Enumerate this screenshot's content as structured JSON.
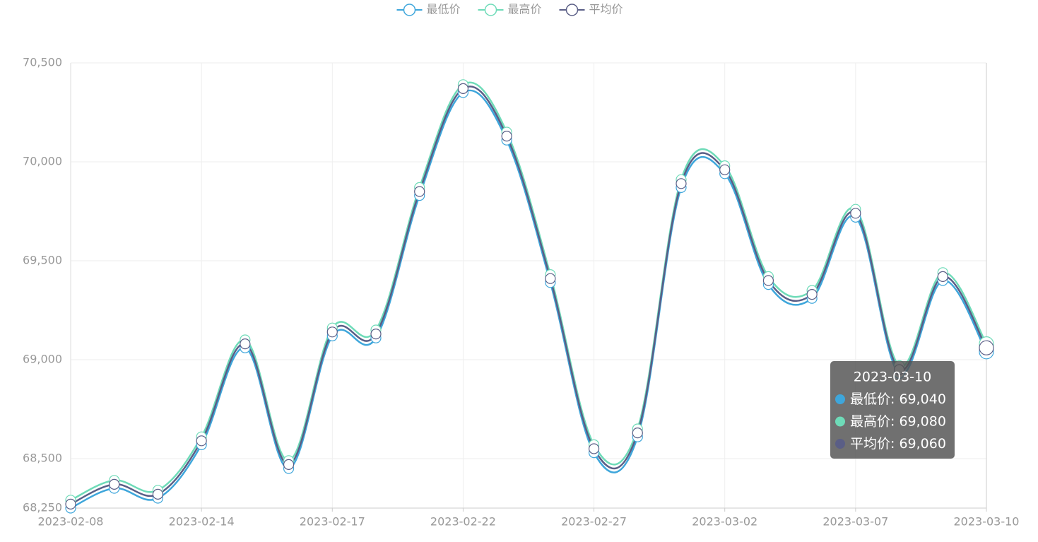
{
  "chart_data": {
    "type": "line",
    "categories": [
      "2023-02-08",
      null,
      null,
      "2023-02-14",
      null,
      null,
      "2023-02-17",
      null,
      null,
      "2023-02-22",
      null,
      null,
      "2023-02-27",
      null,
      null,
      "2023-03-02",
      null,
      null,
      "2023-03-07",
      null,
      null,
      "2023-03-10"
    ],
    "series": [
      {
        "name": "最低价",
        "color": "#3ea6db",
        "values": [
          68250,
          68350,
          68300,
          68570,
          69060,
          68450,
          69120,
          69110,
          69830,
          70350,
          70110,
          69390,
          68530,
          68610,
          69870,
          69940,
          69380,
          69310,
          69720,
          68930,
          69400,
          69040
        ]
      },
      {
        "name": "最高价",
        "color": "#6edbb8",
        "values": [
          68290,
          68390,
          68340,
          68610,
          69100,
          68490,
          69160,
          69150,
          69870,
          70390,
          70150,
          69430,
          68570,
          68650,
          69910,
          69980,
          69420,
          69350,
          69760,
          68970,
          69440,
          69080
        ]
      },
      {
        "name": "平均价",
        "color": "#5a5e86",
        "values": [
          68270,
          68370,
          68320,
          68590,
          69080,
          68470,
          69140,
          69130,
          69850,
          70370,
          70130,
          69410,
          68550,
          68630,
          69890,
          69960,
          69400,
          69330,
          69740,
          68950,
          69420,
          69060
        ]
      }
    ],
    "ylim": [
      68250,
      70500
    ],
    "yticks": [
      {
        "value": 68250,
        "label": "68,250"
      },
      {
        "value": 68500,
        "label": "68,500"
      },
      {
        "value": 69000,
        "label": "69,000"
      },
      {
        "value": 69500,
        "label": "69,500"
      },
      {
        "value": 70000,
        "label": "70,000"
      },
      {
        "value": 70500,
        "label": "70,500"
      }
    ],
    "grid": true,
    "smooth": true,
    "legend": "top",
    "tooltip": {
      "title": "2023-03-10",
      "items": [
        {
          "name": "最低价",
          "label": "69,040"
        },
        {
          "name": "最高价",
          "label": "69,080"
        },
        {
          "name": "平均价",
          "label": "69,060"
        }
      ]
    }
  }
}
